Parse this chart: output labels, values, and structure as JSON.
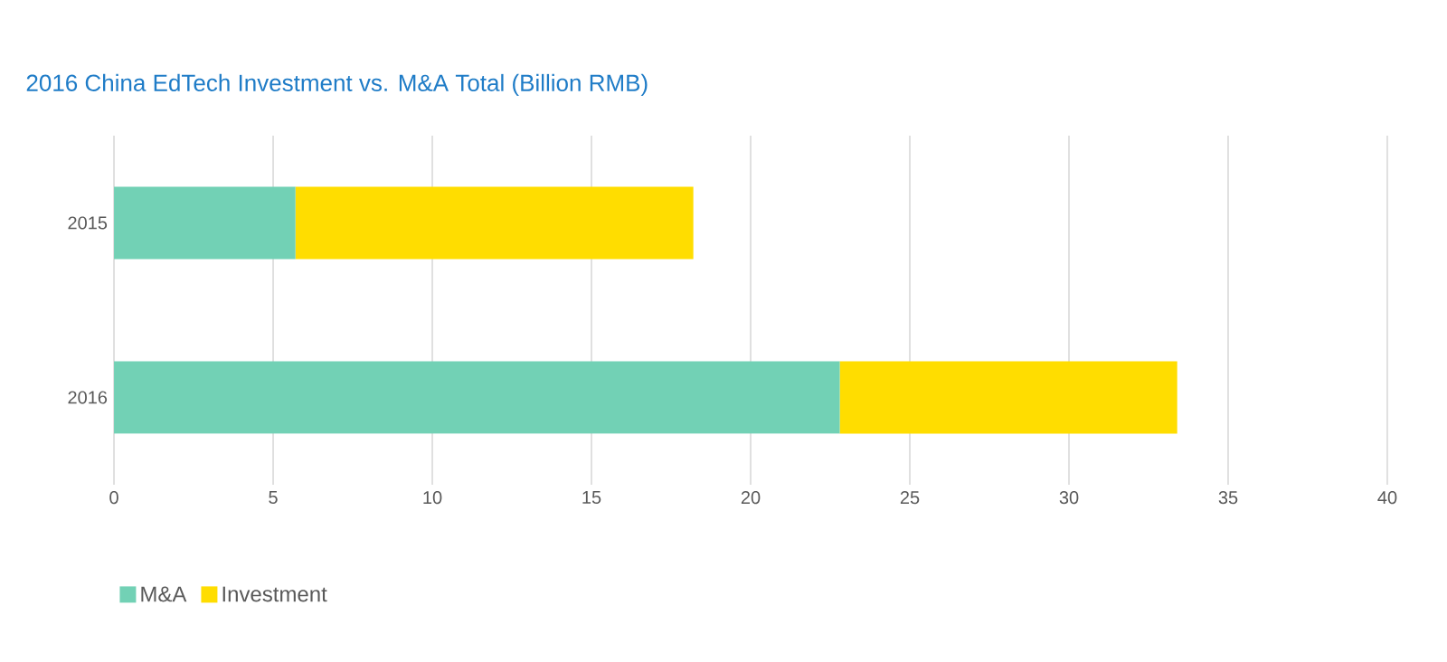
{
  "chart_data": {
    "type": "bar",
    "orientation": "horizontal",
    "stacked": true,
    "title": "2016 China EdTech Investment vs. M&A Total (Billion RMB)",
    "categories": [
      "2015",
      "2016"
    ],
    "series": [
      {
        "name": "M&A",
        "color": "#72d1b5",
        "values": [
          5.7,
          22.8
        ]
      },
      {
        "name": "Investment",
        "color": "#ffdd00",
        "values": [
          12.5,
          10.6
        ]
      }
    ],
    "xlim": [
      0,
      40
    ],
    "xticks": [
      0,
      5,
      10,
      15,
      20,
      25,
      30,
      35,
      40
    ],
    "grid": "x",
    "legend": "bottom left"
  }
}
